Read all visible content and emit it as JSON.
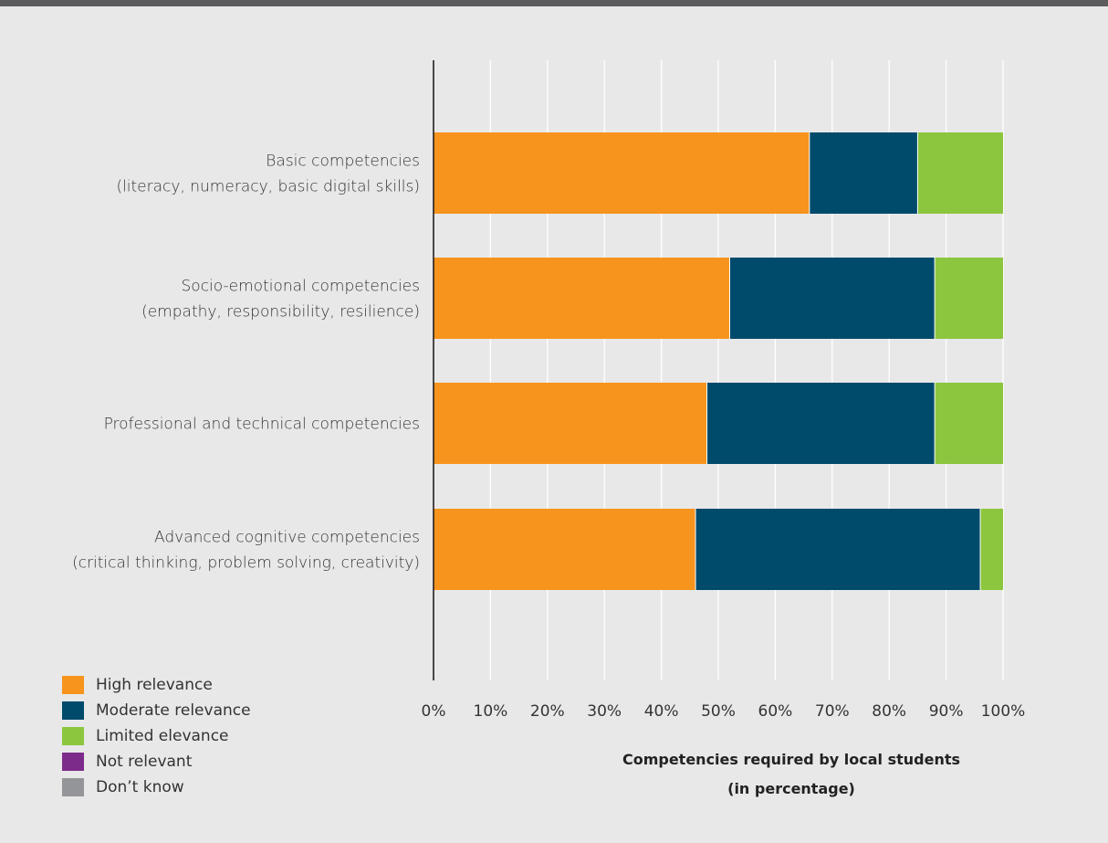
{
  "chart_data": {
    "type": "bar",
    "orientation": "horizontal",
    "stacked": true,
    "title": "",
    "xlabel": "Competencies required by local students\n(in percentage)",
    "ylabel": "",
    "xlim": [
      0,
      100
    ],
    "x_ticks": [
      "0%",
      "10%",
      "20%",
      "30%",
      "40%",
      "50%",
      "60%",
      "70%",
      "80%",
      "90%",
      "100%"
    ],
    "grid": "vertical",
    "legend_position": "bottom-left",
    "categories": [
      [
        "Basic competencies",
        "(literacy, numeracy, basic digital skills)"
      ],
      [
        "Socio-emotional competencies",
        "(empathy, responsibility, resilience)"
      ],
      [
        "Professional and technical competencies"
      ],
      [
        "Advanced cognitive competencies",
        "(critical thinking, problem solving, creativity)"
      ]
    ],
    "series": [
      {
        "name": "High relevance",
        "color": "#f7941d",
        "values": [
          66,
          52,
          48,
          46
        ]
      },
      {
        "name": "Moderate relevance",
        "color": "#004a6b",
        "values": [
          19,
          36,
          40,
          50
        ]
      },
      {
        "name": "Limited elevance",
        "color": "#8cc63f",
        "values": [
          15,
          12,
          12,
          4
        ]
      },
      {
        "name": "Not relevant",
        "color": "#7d2b8b",
        "values": [
          0,
          0,
          0,
          0
        ]
      },
      {
        "name": "Don’t know",
        "color": "#939598",
        "values": [
          0,
          0,
          0,
          0
        ]
      }
    ]
  }
}
